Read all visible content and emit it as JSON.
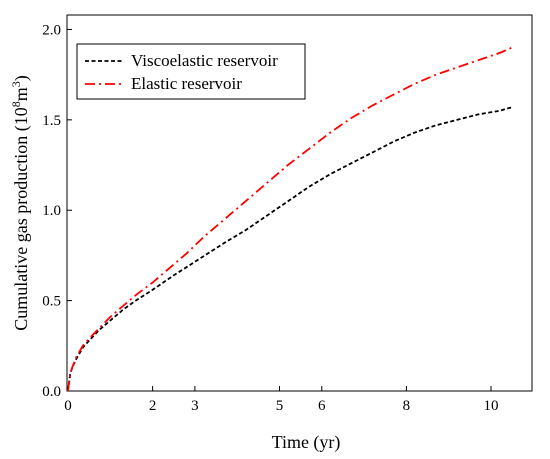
{
  "chart_data": {
    "type": "line",
    "title": "",
    "xlabel": "Time (yr)",
    "ylabel": {
      "prefix": "Cumulative gas production (10",
      "sup1": "8",
      "mid": "m",
      "sup2": "3",
      "suffix": ")"
    },
    "x_tick_labels": [
      {
        "value": 0,
        "label": "0"
      },
      {
        "value": 2,
        "label": "2"
      },
      {
        "value": 3,
        "label": "3"
      },
      {
        "value": 5,
        "label": "5"
      },
      {
        "value": 6,
        "label": "6"
      },
      {
        "value": 8,
        "label": "8"
      },
      {
        "value": 10,
        "label": "10"
      }
    ],
    "y_ticks": [
      0.0,
      0.5,
      1.0,
      1.5,
      2.0
    ],
    "y_tick_labels": [
      "0.0",
      "0.5",
      "1.0",
      "1.5",
      "2.0"
    ],
    "ylim": [
      0.0,
      2.08
    ],
    "grid": false,
    "legend_position": "top-left",
    "series": [
      {
        "name": "Viscoelastic reservoir",
        "color": "#000000",
        "dash": "dotted",
        "x": [
          0,
          0.05,
          0.1,
          0.2,
          0.35,
          0.5,
          0.75,
          1.0,
          1.3,
          1.6,
          2.0,
          2.5,
          2.9,
          3.3,
          3.7,
          4.2,
          4.7,
          5.2,
          5.7,
          6.2,
          6.7,
          7.2,
          7.7,
          8.2,
          8.7,
          9.2,
          9.7,
          10.2,
          10.5
        ],
        "y": [
          0.0,
          0.09,
          0.13,
          0.18,
          0.24,
          0.28,
          0.34,
          0.39,
          0.45,
          0.5,
          0.56,
          0.64,
          0.7,
          0.76,
          0.82,
          0.89,
          0.97,
          1.05,
          1.13,
          1.2,
          1.26,
          1.32,
          1.38,
          1.43,
          1.47,
          1.5,
          1.53,
          1.55,
          1.57
        ]
      },
      {
        "name": "Elastic reservoir",
        "color": "#ff0000",
        "dash": "dash-dot",
        "x": [
          0,
          0.05,
          0.1,
          0.2,
          0.35,
          0.5,
          0.75,
          1.0,
          1.3,
          1.6,
          2.0,
          2.4,
          2.8,
          3.2,
          3.7,
          4.2,
          4.7,
          5.2,
          5.7,
          6.2,
          6.7,
          7.2,
          7.7,
          8.2,
          8.7,
          9.2,
          9.7,
          10.2,
          10.5
        ],
        "y": [
          0.0,
          0.09,
          0.13,
          0.19,
          0.25,
          0.29,
          0.35,
          0.41,
          0.47,
          0.53,
          0.6,
          0.68,
          0.76,
          0.85,
          0.95,
          1.05,
          1.15,
          1.25,
          1.34,
          1.43,
          1.51,
          1.58,
          1.64,
          1.7,
          1.75,
          1.79,
          1.83,
          1.87,
          1.9
        ]
      }
    ]
  }
}
